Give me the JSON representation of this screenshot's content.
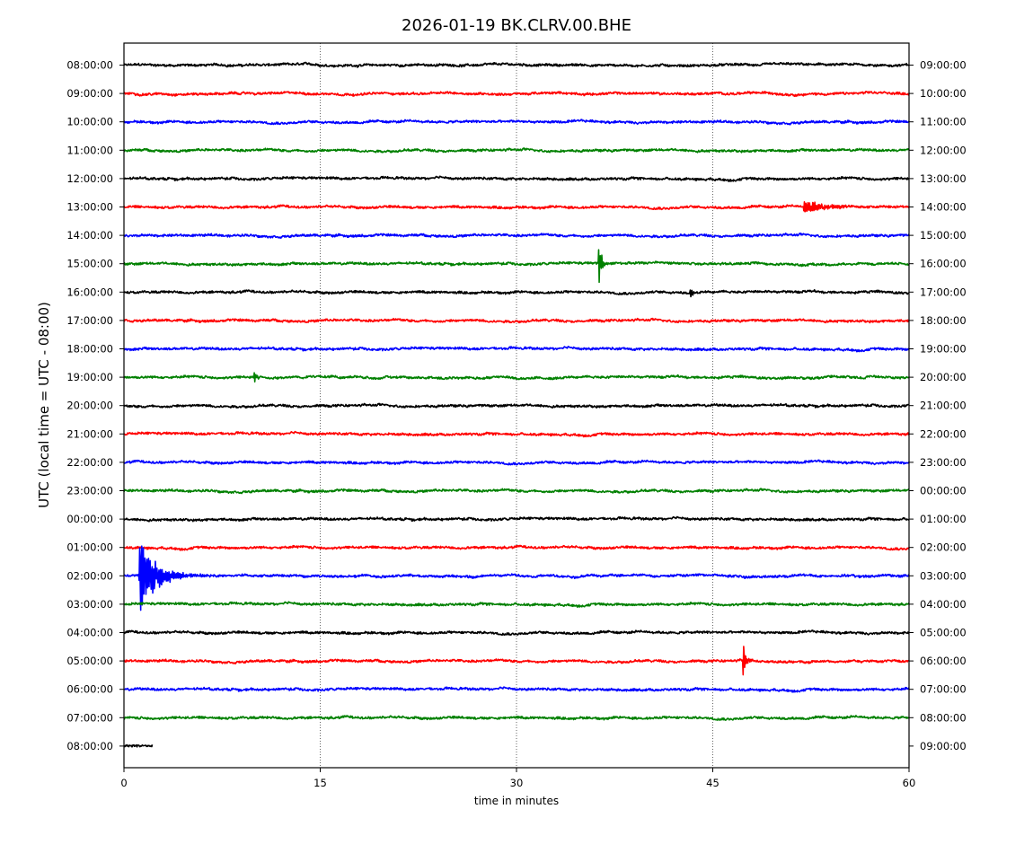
{
  "chart_data": {
    "type": "line",
    "title": "2026-01-19 BK.CLRV.00.BHE",
    "xlabel": "time in minutes",
    "ylabel": "UTC (local time = UTC - 08:00)",
    "xlim": [
      0,
      60
    ],
    "x_ticks": [
      0,
      15,
      30,
      45,
      60
    ],
    "x_tick_labels": [
      "0",
      "15",
      "30",
      "45",
      "60"
    ],
    "grid": "vertical dotted at 15, 30, 45",
    "trace_colors": [
      "#000000",
      "#ff0000",
      "#0000ff",
      "#008000"
    ],
    "rows": [
      {
        "left": "08:00:00",
        "right": "09:00:00",
        "color": "#000000",
        "end_minute": 60,
        "events": []
      },
      {
        "left": "09:00:00",
        "right": "10:00:00",
        "color": "#ff0000",
        "end_minute": 60,
        "events": []
      },
      {
        "left": "10:00:00",
        "right": "11:00:00",
        "color": "#0000ff",
        "end_minute": 60,
        "events": []
      },
      {
        "left": "11:00:00",
        "right": "12:00:00",
        "color": "#008000",
        "end_minute": 60,
        "events": []
      },
      {
        "left": "12:00:00",
        "right": "13:00:00",
        "color": "#000000",
        "end_minute": 60,
        "events": []
      },
      {
        "left": "13:00:00",
        "right": "14:00:00",
        "color": "#ff0000",
        "end_minute": 60,
        "events": [
          {
            "minute": 52,
            "amplitude": 0.3,
            "decay": 4
          }
        ]
      },
      {
        "left": "14:00:00",
        "right": "15:00:00",
        "color": "#0000ff",
        "end_minute": 60,
        "events": []
      },
      {
        "left": "15:00:00",
        "right": "16:00:00",
        "color": "#008000",
        "end_minute": 60,
        "events": [
          {
            "minute": 36.3,
            "amplitude": 1.0,
            "decay": 0.6
          }
        ]
      },
      {
        "left": "16:00:00",
        "right": "17:00:00",
        "color": "#000000",
        "end_minute": 60,
        "events": [
          {
            "minute": 43.3,
            "amplitude": 0.15,
            "decay": 0.6
          }
        ]
      },
      {
        "left": "17:00:00",
        "right": "18:00:00",
        "color": "#ff0000",
        "end_minute": 60,
        "events": []
      },
      {
        "left": "18:00:00",
        "right": "19:00:00",
        "color": "#0000ff",
        "end_minute": 60,
        "events": []
      },
      {
        "left": "19:00:00",
        "right": "20:00:00",
        "color": "#008000",
        "end_minute": 60,
        "events": [
          {
            "minute": 10,
            "amplitude": 0.25,
            "decay": 0.4
          }
        ]
      },
      {
        "left": "20:00:00",
        "right": "21:00:00",
        "color": "#000000",
        "end_minute": 60,
        "events": []
      },
      {
        "left": "21:00:00",
        "right": "22:00:00",
        "color": "#ff0000",
        "end_minute": 60,
        "events": []
      },
      {
        "left": "22:00:00",
        "right": "23:00:00",
        "color": "#0000ff",
        "end_minute": 60,
        "events": []
      },
      {
        "left": "23:00:00",
        "right": "00:00:00",
        "color": "#008000",
        "end_minute": 60,
        "events": []
      },
      {
        "left": "00:00:00",
        "right": "01:00:00",
        "color": "#000000",
        "end_minute": 60,
        "events": []
      },
      {
        "left": "01:00:00",
        "right": "02:00:00",
        "color": "#ff0000",
        "end_minute": 60,
        "events": []
      },
      {
        "left": "02:00:00",
        "right": "03:00:00",
        "color": "#0000ff",
        "end_minute": 60,
        "events": [
          {
            "minute": 1.2,
            "amplitude": 1.4,
            "decay": 3.5
          }
        ]
      },
      {
        "left": "03:00:00",
        "right": "04:00:00",
        "color": "#008000",
        "end_minute": 60,
        "events": []
      },
      {
        "left": "04:00:00",
        "right": "05:00:00",
        "color": "#000000",
        "end_minute": 60,
        "events": []
      },
      {
        "left": "05:00:00",
        "right": "06:00:00",
        "color": "#ff0000",
        "end_minute": 60,
        "events": [
          {
            "minute": 47.3,
            "amplitude": 0.7,
            "decay": 0.6
          }
        ]
      },
      {
        "left": "06:00:00",
        "right": "07:00:00",
        "color": "#0000ff",
        "end_minute": 60,
        "events": []
      },
      {
        "left": "07:00:00",
        "right": "08:00:00",
        "color": "#008000",
        "end_minute": 60,
        "events": []
      },
      {
        "left": "08:00:00",
        "right": "09:00:00",
        "color": "#000000",
        "end_minute": 2.2,
        "events": []
      }
    ]
  }
}
